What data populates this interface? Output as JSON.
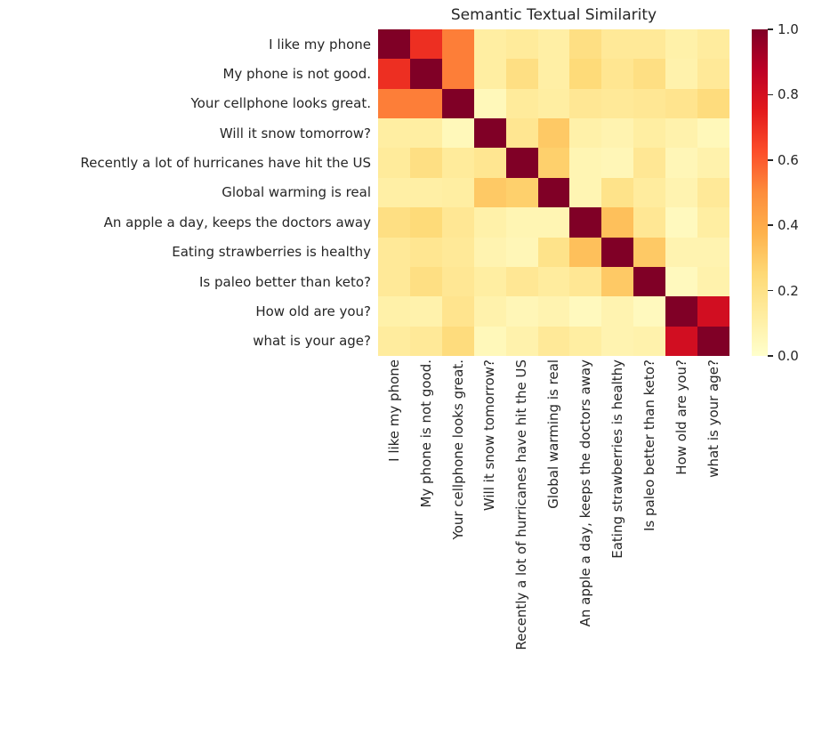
{
  "title": "Semantic Textual Similarity",
  "chart_data": {
    "type": "heatmap",
    "title": "Semantic Textual Similarity",
    "labels": [
      "I like my phone",
      "My phone is not good.",
      "Your cellphone looks great.",
      "Will it snow tomorrow?",
      "Recently a lot of hurricanes have hit the US",
      "Global warming is real",
      "An apple a day, keeps the doctors away",
      "Eating strawberries is healthy",
      "Is paleo better than keto?",
      "How old are you?",
      "what is your age?"
    ],
    "matrix": [
      [
        1.0,
        0.7,
        0.53,
        0.12,
        0.14,
        0.11,
        0.21,
        0.15,
        0.15,
        0.1,
        0.13
      ],
      [
        0.7,
        1.0,
        0.53,
        0.12,
        0.21,
        0.11,
        0.24,
        0.17,
        0.21,
        0.09,
        0.15
      ],
      [
        0.53,
        0.53,
        1.0,
        0.05,
        0.14,
        0.12,
        0.16,
        0.15,
        0.16,
        0.18,
        0.23
      ],
      [
        0.12,
        0.12,
        0.05,
        1.0,
        0.17,
        0.3,
        0.1,
        0.08,
        0.12,
        0.09,
        0.05
      ],
      [
        0.14,
        0.21,
        0.14,
        0.17,
        1.0,
        0.28,
        0.07,
        0.06,
        0.16,
        0.06,
        0.09
      ],
      [
        0.11,
        0.11,
        0.12,
        0.3,
        0.28,
        1.0,
        0.07,
        0.19,
        0.13,
        0.08,
        0.15
      ],
      [
        0.21,
        0.24,
        0.16,
        0.1,
        0.07,
        0.07,
        1.0,
        0.33,
        0.16,
        0.04,
        0.12
      ],
      [
        0.15,
        0.17,
        0.15,
        0.08,
        0.06,
        0.19,
        0.33,
        1.0,
        0.3,
        0.08,
        0.08
      ],
      [
        0.15,
        0.21,
        0.16,
        0.12,
        0.16,
        0.13,
        0.16,
        0.3,
        1.0,
        0.04,
        0.09
      ],
      [
        0.1,
        0.09,
        0.18,
        0.09,
        0.06,
        0.08,
        0.04,
        0.08,
        0.04,
        1.0,
        0.81
      ],
      [
        0.13,
        0.15,
        0.23,
        0.05,
        0.09,
        0.15,
        0.12,
        0.08,
        0.09,
        0.81,
        1.0
      ]
    ],
    "colormap": "YlOrRd",
    "colormap_stops": [
      "#ffffcc",
      "#ffeda0",
      "#fed976",
      "#feb24c",
      "#fd8d3c",
      "#fc4e2a",
      "#e31a1c",
      "#bd0026",
      "#800026"
    ],
    "value_range": [
      0.0,
      1.0
    ],
    "grid": false,
    "legend_position": "right",
    "colorbar": {
      "ticks": [
        {
          "label": "0.0",
          "value": 0.0
        },
        {
          "label": "0.2",
          "value": 0.2
        },
        {
          "label": "0.4",
          "value": 0.4
        },
        {
          "label": "0.6",
          "value": 0.6
        },
        {
          "label": "0.8",
          "value": 0.8
        },
        {
          "label": "1.0",
          "value": 1.0
        }
      ]
    }
  }
}
